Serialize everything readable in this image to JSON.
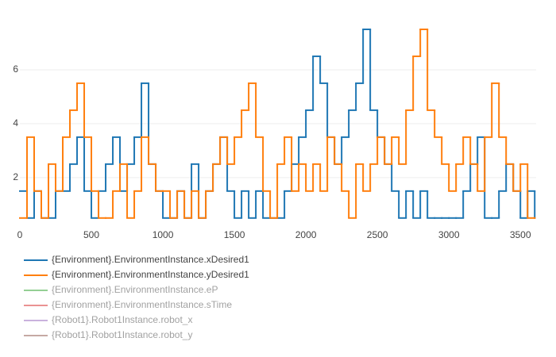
{
  "chart_data": {
    "type": "step",
    "x": [
      0,
      50,
      100,
      150,
      200,
      250,
      300,
      350,
      400,
      450,
      500,
      550,
      600,
      650,
      700,
      750,
      800,
      850,
      900,
      950,
      1000,
      1050,
      1100,
      1150,
      1200,
      1250,
      1300,
      1350,
      1400,
      1450,
      1500,
      1550,
      1600,
      1650,
      1700,
      1750,
      1800,
      1850,
      1900,
      1950,
      2000,
      2050,
      2100,
      2150,
      2200,
      2250,
      2300,
      2350,
      2400,
      2450,
      2500,
      2550,
      2600,
      2650,
      2700,
      2750,
      2800,
      2850,
      2900,
      2950,
      3000,
      3050,
      3100,
      3150,
      3200,
      3250,
      3300,
      3350,
      3400,
      3450,
      3500,
      3550,
      3600
    ],
    "series": [
      {
        "name": "{Environment}.EnvironmentInstance.xDesired1",
        "color": "#1f77b4",
        "visible": true,
        "values": [
          1.5,
          0.5,
          1.5,
          0.5,
          0.5,
          1.5,
          1.5,
          2.5,
          3.5,
          1.5,
          0.5,
          1.5,
          2.5,
          3.5,
          1.5,
          2.5,
          3.5,
          5.5,
          2.5,
          1.5,
          0.5,
          0.5,
          1.5,
          0.5,
          2.5,
          0.5,
          1.5,
          2.5,
          3.5,
          1.5,
          0.5,
          1.5,
          0.5,
          1.5,
          0.5,
          0.5,
          0.5,
          1.5,
          2.5,
          3.5,
          4.5,
          6.5,
          5.5,
          3.5,
          2.5,
          3.5,
          4.5,
          5.5,
          7.5,
          4.5,
          3.5,
          2.5,
          1.5,
          0.5,
          1.5,
          0.5,
          1.5,
          0.5,
          0.5,
          0.5,
          0.5,
          0.5,
          1.5,
          2.5,
          3.5,
          0.5,
          0.5,
          1.5,
          2.5,
          1.5,
          0.5,
          1.5,
          0.5
        ]
      },
      {
        "name": "{Environment}.EnvironmentInstance.yDesired1",
        "color": "#ff7f0e",
        "visible": true,
        "values": [
          0.5,
          3.5,
          1.5,
          0.5,
          2.5,
          1.5,
          3.5,
          4.5,
          5.5,
          3.5,
          1.5,
          0.5,
          0.5,
          1.5,
          2.5,
          0.5,
          1.5,
          3.5,
          2.5,
          1.5,
          1.5,
          0.5,
          1.5,
          0.5,
          1.5,
          0.5,
          1.5,
          2.5,
          3.5,
          2.5,
          3.5,
          4.5,
          5.5,
          3.5,
          1.5,
          0.5,
          2.5,
          3.5,
          1.5,
          2.5,
          1.5,
          2.5,
          1.5,
          3.5,
          2.5,
          1.5,
          0.5,
          2.5,
          1.5,
          2.5,
          3.5,
          2.5,
          3.5,
          2.5,
          4.5,
          6.5,
          7.5,
          4.5,
          3.5,
          2.5,
          1.5,
          2.5,
          3.5,
          2.5,
          1.5,
          3.5,
          5.5,
          3.5,
          2.5,
          1.5,
          2.5,
          0.5,
          0.5
        ]
      },
      {
        "name": "{Environment}.EnvironmentInstance.eP",
        "color": "#2ca02c",
        "visible": "legendonly"
      },
      {
        "name": "{Environment}.EnvironmentInstance.sTime",
        "color": "#d62728",
        "visible": "legendonly"
      },
      {
        "name": "{Robot1}.Robot1Instance.robot_x",
        "color": "#9467bd",
        "visible": "legendonly"
      },
      {
        "name": "{Robot1}.Robot1Instance.robot_y",
        "color": "#8c564b",
        "visible": "legendonly"
      }
    ],
    "xlim": [
      0,
      3610
    ],
    "xticks": [
      0,
      500,
      1000,
      1500,
      2000,
      2500,
      3000,
      3500
    ],
    "ylim": [
      0.2,
      8.0
    ],
    "yticks": [
      2,
      4,
      6
    ],
    "grid": true
  }
}
